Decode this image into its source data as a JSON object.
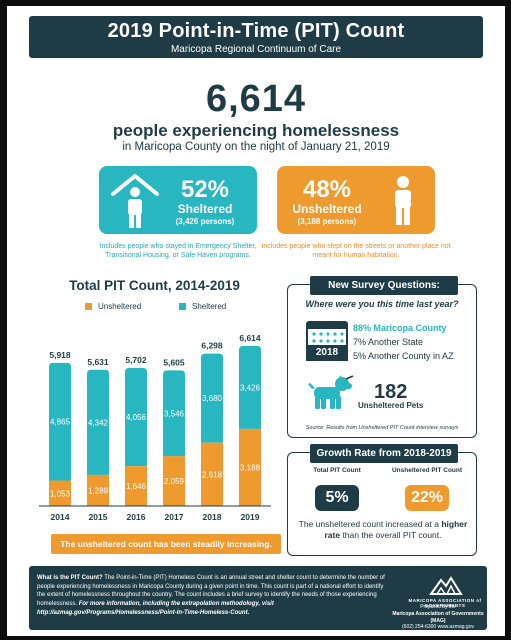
{
  "header": {
    "title": "2019 Point-in-Time (PIT) Count",
    "subtitle": "Maricopa Regional Continuum of Care"
  },
  "hero": {
    "total": "6,614",
    "line1": "people experiencing homelessness",
    "line2": "in Maricopa County on the night of January 21, 2019"
  },
  "cards": {
    "sheltered": {
      "pct": "52%",
      "label": "Sheltered",
      "persons": "(3,426 persons)",
      "note": "Includes people who stayed in Emergency Shelter, Transitional Housing, or Safe Haven programs."
    },
    "unsheltered": {
      "pct": "48%",
      "label": "Unsheltered",
      "persons": "(3,188 persons)",
      "note": "Includes people who slept on the streets or another place not meant for human habitation."
    }
  },
  "chart_data": {
    "type": "bar",
    "stacked": true,
    "title": "Total PIT Count, 2014-2019",
    "categories": [
      "2014",
      "2015",
      "2016",
      "2017",
      "2018",
      "2019"
    ],
    "series": [
      {
        "name": "Unsheltered",
        "values": [
          1053,
          1289,
          1646,
          2059,
          2618,
          3188
        ],
        "color": "#ee9a2e"
      },
      {
        "name": "Sheltered",
        "values": [
          4865,
          4342,
          4056,
          3546,
          3680,
          3426
        ],
        "color": "#28b6c0"
      }
    ],
    "value_labels": {
      "Unsheltered": [
        "1,053",
        "1,289",
        "1,646",
        "2,059",
        "2,618",
        "3,188"
      ],
      "Sheltered": [
        "4,865",
        "4,342",
        "4,056",
        "3,546",
        "3,680",
        "3,426"
      ]
    },
    "totals": [
      "5,918",
      "5,631",
      "5,702",
      "5,605",
      "6,298",
      "6,614"
    ],
    "ylim": [
      0,
      6614
    ],
    "legend_position": "top",
    "grid": false,
    "caption": "The unsheltered count has been steadily increasing."
  },
  "survey": {
    "title": "New Survey Questions:",
    "question": "Where were you this time last year?",
    "year_badge": "2018",
    "answers": [
      "88% Maricopa County",
      "7% Another State",
      "5% Another County in AZ"
    ],
    "pets_count": "182",
    "pets_label": "Unsheltered Pets",
    "source": "Source: Results from Unsheltered PIT Count interview surveys"
  },
  "growth": {
    "title": "Growth Rate from 2018-2019",
    "total_label": "Total PIT Count",
    "total_value": "5%",
    "unsheltered_label": "Unsheltered PIT Count",
    "unsheltered_value": "22%",
    "text_before": "The unsheltered count increased at a",
    "text_bold": "higher rate",
    "text_after": "than the overall PIT count."
  },
  "footer": {
    "lead": "What is the PIT Count?",
    "body": "The Point-in-Time (PIT) Homeless Count is an annual street and shelter count to determine the number of people experiencing homelessness in Maricopa County during a given point in time. This count is part of a national effort to identify the extent of homelessness throughout the country. The count includes a brief survey to identify the needs of those experiencing homelessness.",
    "link_text": "For more information, including the extrapolation methodology, visit http://azmag.gov/Programs/Homelessness/Point-In-Time-Homeless-Count.",
    "org_name": "MARICOPA ASSOCIATION of GOVERNMENTS",
    "prepared": "Prepared by the",
    "org_full": "Maricopa Association of Governments (MAG)",
    "contact": "(602) 254-6300  www.azmag.gov"
  },
  "colors": {
    "navy": "#1f3c46",
    "teal": "#28b6c0",
    "orange": "#ee9a2e"
  }
}
